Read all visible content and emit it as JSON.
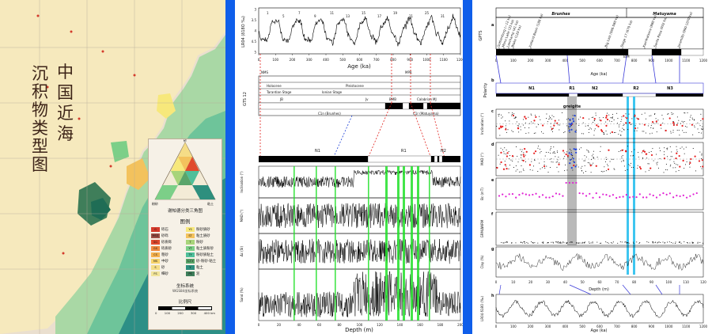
{
  "map": {
    "title_line1": "中国近海",
    "title_line2": "沉积物类型图",
    "triangle_caption": "谢帕德分类三角图",
    "legend_title": "图例",
    "legend": [
      {
        "code": "G",
        "label": "砾石",
        "color": "#d53a2b"
      },
      {
        "code": "YS",
        "label": "粉砂质砂",
        "color": "#f7e87b"
      },
      {
        "code": "MSG",
        "label": "砂砾",
        "color": "#9f4f46"
      },
      {
        "code": "ST",
        "label": "粘土质砂",
        "color": "#f3c25d"
      },
      {
        "code": "SG",
        "label": "砂质砾",
        "color": "#e04b2e"
      },
      {
        "code": "T",
        "label": "粉砂",
        "color": "#a8d47a"
      },
      {
        "code": "GS",
        "label": "砾质砂",
        "color": "#ef8a3e"
      },
      {
        "code": "YT",
        "label": "粘土质粉砂",
        "color": "#7ccf88"
      },
      {
        "code": "CS",
        "label": "粗砂",
        "color": "#f5b04c"
      },
      {
        "code": "TY",
        "label": "粉砂质粘土",
        "color": "#4fbf9a"
      },
      {
        "code": "MS",
        "label": "中砂",
        "color": "#f7d36a"
      },
      {
        "code": "S-T-Y",
        "label": "砂-粉砂-粘土",
        "color": "#5aa56a"
      },
      {
        "code": "S",
        "label": "砂",
        "color": "#f5dd87"
      },
      {
        "code": "Y",
        "label": "粘土",
        "color": "#2e8f7e"
      },
      {
        "code": "FS",
        "label": "细砂",
        "color": "#f1e49a"
      },
      {
        "code": "PS",
        "label": "泥",
        "color": "#3f7e5a"
      }
    ],
    "triangle_vertices": [
      "砂",
      "粉砂",
      "粘土"
    ],
    "coord_system_label": "坐标系统",
    "coord_system_value": "WGS84坐标系统",
    "scale_label": "比例尺",
    "scale_ticks": [
      "0",
      "100",
      "200",
      "300",
      "400 km"
    ],
    "colors": {
      "land": "#f4e6b5",
      "shelf": "#a9d8a5",
      "deep": "#2d8f86",
      "mid": "#6ec49a"
    }
  },
  "core": {
    "top_plot": {
      "ylabel": "LR04 (δ18O ‰)",
      "xlabel": "Age (ka)",
      "x_ticks": [
        "0",
        "100",
        "200",
        "300",
        "400",
        "500",
        "600",
        "700",
        "800",
        "900",
        "1000",
        "1100",
        "1200"
      ],
      "y_ticks": [
        "3",
        "3.5",
        "4",
        "4.5",
        "5"
      ],
      "stage_numbers": [
        "1",
        "5",
        "7",
        "9",
        "11",
        "13",
        "15",
        "17",
        "19",
        "21",
        "25",
        "31"
      ]
    },
    "timescale": {
      "labels": [
        "NMS",
        "Holocene",
        "Pleistocene",
        "Tarantian Stage",
        "Ionian Stage",
        "Calabrian",
        "C1n (Brunhes)",
        "C1r (Matuyama)",
        "MPR",
        "GTS 12"
      ],
      "c_labels": [
        "JB",
        "Jv",
        "BMB",
        "MJ"
      ]
    },
    "depth_plot": {
      "polarity_zones": [
        "N1",
        "R1",
        "N2"
      ],
      "panels": [
        "Inclination (°)",
        "MAD (°)",
        "Δc (SI)",
        "Sand (%)"
      ],
      "xlabel": "Depth (m)",
      "x_ticks": [
        "0",
        "20",
        "40",
        "60",
        "80",
        "100",
        "120",
        "140",
        "160",
        "180",
        "200"
      ]
    }
  },
  "paleomag": {
    "gpts_label": "GPTS",
    "brunhes": "Brunhes",
    "matuyama": "Matuyama",
    "events": [
      "Gothenburg (~12 ka)",
      "Mono Lake (33 ka)",
      "Laschamp (41 ka)",
      "Blake (120 ka)",
      "Iceland Basin (188 ka)",
      "Big Lost (560-580 ka)",
      "Stage 17 (670 ka)",
      "Kamikatsura (880 ka)",
      "Santa Rosa (932 ka)",
      "Jaramillo (990-1070 ka)"
    ],
    "bm_label": "B/M",
    "age_axis_label": "Age (ka)",
    "age_ticks": [
      "0",
      "100",
      "200",
      "300",
      "400",
      "500",
      "600",
      "700",
      "800",
      "900",
      "1000",
      "1100",
      "1200"
    ],
    "zones": [
      "N1",
      "R1",
      "N2",
      "R2",
      "N3"
    ],
    "polarity_label": "Polarity",
    "greigite_label": "greigite",
    "panel_letters": [
      "a",
      "b",
      "c",
      "d",
      "e",
      "f",
      "g",
      "h"
    ],
    "panel_ylabels": [
      "Inclination (°)",
      "MAD (°)",
      "Bc (mT)",
      "GRM/ΔNRM",
      "Clay (%)",
      "LR04 δ18O (‰)"
    ],
    "depth_label": "Depth (m)",
    "depth_ticks": [
      "0",
      "10",
      "20",
      "30",
      "40",
      "50",
      "60",
      "70",
      "80",
      "90",
      "100",
      "110",
      "120"
    ]
  }
}
